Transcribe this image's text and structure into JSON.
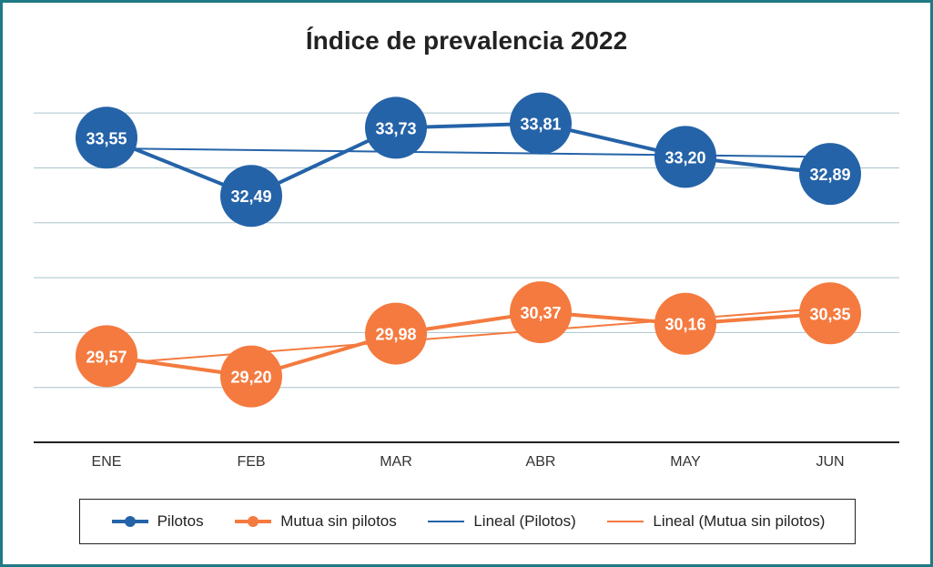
{
  "chart_data": {
    "type": "line",
    "title": "Índice de prevalencia 2022",
    "categories": [
      "ENE",
      "FEB",
      "MAR",
      "ABR",
      "MAY",
      "JUN"
    ],
    "series": [
      {
        "name": "Pilotos",
        "values": [
          33.55,
          32.49,
          33.73,
          33.81,
          33.2,
          32.89
        ],
        "labels": [
          "33,55",
          "32,49",
          "33,73",
          "33,81",
          "33,20",
          "32,89"
        ],
        "color": "#2563a8"
      },
      {
        "name": "Mutua sin pilotos",
        "values": [
          29.57,
          29.2,
          29.98,
          30.37,
          30.16,
          30.35
        ],
        "labels": [
          "29,57",
          "29,20",
          "29,98",
          "30,37",
          "30,16",
          "30,35"
        ],
        "color": "#f47a3f"
      }
    ],
    "trendlines": [
      {
        "name": "Lineal (Pilotos)",
        "series": "Pilotos",
        "type": "linear",
        "color": "#2563a8"
      },
      {
        "name": "Lineal (Mutua sin pilotos)",
        "series": "Mutua sin pilotos",
        "type": "linear",
        "color": "#f47a3f"
      }
    ],
    "ylim": [
      28,
      34.5
    ],
    "grid": true,
    "legend_position": "bottom"
  }
}
